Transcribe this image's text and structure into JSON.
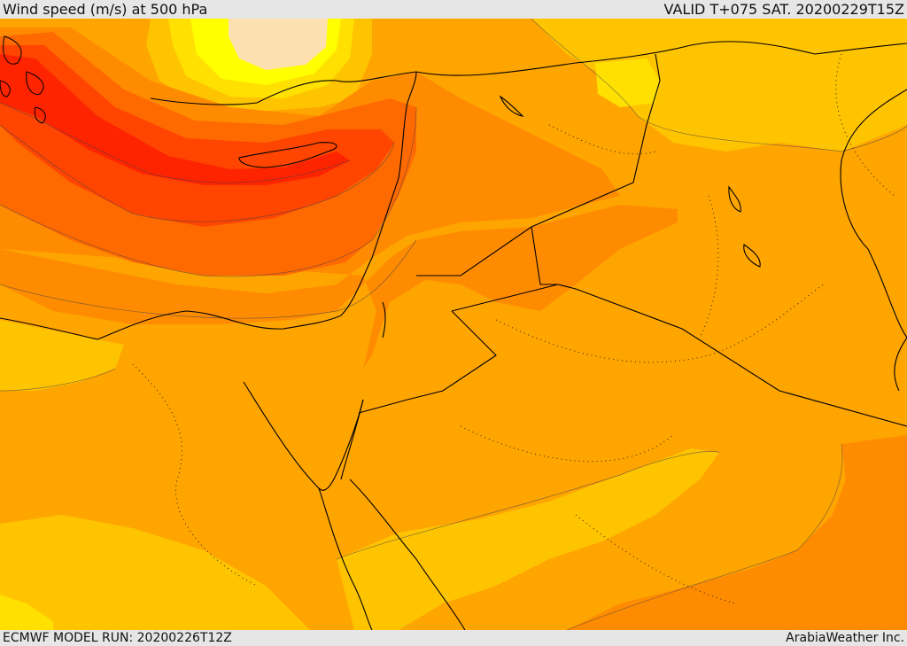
{
  "header": {
    "title": "Wind speed (m/s) at 500 hPa",
    "valid_time": "VALID T+075 SAT. 20200229T15Z"
  },
  "footer": {
    "model_run": "ECMWF MODEL RUN: 20200226T12Z",
    "credit": "ArabiaWeather Inc."
  },
  "map": {
    "variable": "wind speed",
    "unit": "m/s",
    "level": "500 hPa",
    "palette": [
      "#fff7c0",
      "#ffff00",
      "#ffe000",
      "#ffc400",
      "#ffa500",
      "#ff8c00",
      "#ff6a00",
      "#ff4500",
      "#ff2400"
    ],
    "coastline_color": "#000000"
  }
}
